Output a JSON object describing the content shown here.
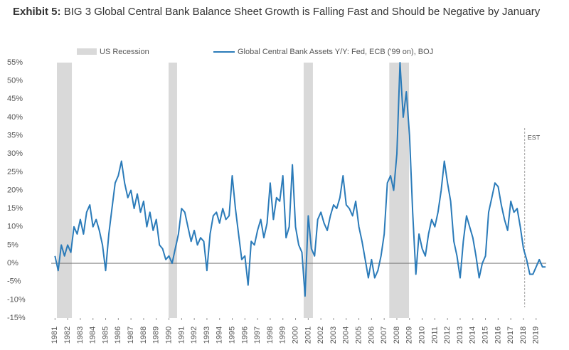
{
  "chart_data": {
    "type": "line",
    "title_label": "Exhibit 5:",
    "title": "BIG 3 Global Central Bank Balance Sheet Growth is Falling Fast and Should be Negative by January",
    "recession_name": "US Recession",
    "recession_color": "#d9d9d9",
    "recessions": [
      {
        "start": 1981.15,
        "end": 1982.33
      },
      {
        "start": 1989.97,
        "end": 1990.64
      },
      {
        "start": 2000.64,
        "end": 2001.37
      },
      {
        "start": 2007.4,
        "end": 2008.96
      }
    ],
    "est": {
      "label": "EST",
      "x": 2018.1
    },
    "x": [
      1981,
      1981.25,
      1981.5,
      1981.75,
      1982,
      1982.25,
      1982.5,
      1982.75,
      1983,
      1983.25,
      1983.5,
      1983.75,
      1984,
      1984.25,
      1984.5,
      1984.75,
      1985,
      1985.25,
      1985.5,
      1985.75,
      1986,
      1986.25,
      1986.5,
      1986.75,
      1987,
      1987.25,
      1987.5,
      1987.75,
      1988,
      1988.25,
      1988.5,
      1988.75,
      1989,
      1989.25,
      1989.5,
      1989.75,
      1990,
      1990.25,
      1990.5,
      1990.75,
      1991,
      1991.25,
      1991.5,
      1991.75,
      1992,
      1992.25,
      1992.5,
      1992.75,
      1993,
      1993.25,
      1993.5,
      1993.75,
      1994,
      1994.25,
      1994.5,
      1994.75,
      1995,
      1995.25,
      1995.5,
      1995.75,
      1996,
      1996.25,
      1996.5,
      1996.75,
      1997,
      1997.25,
      1997.5,
      1997.75,
      1998,
      1998.25,
      1998.5,
      1998.75,
      1999,
      1999.25,
      1999.5,
      1999.75,
      2000,
      2000.25,
      2000.5,
      2000.75,
      2001,
      2001.25,
      2001.5,
      2001.75,
      2002,
      2002.25,
      2002.5,
      2002.75,
      2003,
      2003.25,
      2003.5,
      2003.75,
      2004,
      2004.25,
      2004.5,
      2004.75,
      2005,
      2005.25,
      2005.5,
      2005.75,
      2006,
      2006.25,
      2006.5,
      2006.75,
      2007,
      2007.25,
      2007.5,
      2007.75,
      2008,
      2008.25,
      2008.5,
      2008.75,
      2009,
      2009.25,
      2009.5,
      2009.75,
      2010,
      2010.25,
      2010.5,
      2010.75,
      2011,
      2011.25,
      2011.5,
      2011.75,
      2012,
      2012.25,
      2012.5,
      2012.75,
      2013,
      2013.25,
      2013.5,
      2013.75,
      2014,
      2014.25,
      2014.5,
      2014.75,
      2015,
      2015.25,
      2015.5,
      2015.75,
      2016,
      2016.25,
      2016.5,
      2016.75,
      2017,
      2017.25,
      2017.5,
      2017.75,
      2018,
      2018.25,
      2018.5,
      2018.75,
      2019,
      2019.25,
      2019.5,
      2019.75
    ],
    "series": [
      {
        "name": "Global Central Bank Assets Y/Y: Fed, ECB ('99 on), BOJ",
        "color": "#2b7bb9",
        "values": [
          2,
          -2,
          5,
          2,
          5,
          3,
          10,
          8,
          12,
          8,
          14,
          16,
          10,
          12,
          9,
          5,
          -2,
          8,
          15,
          22,
          24,
          28,
          22,
          18,
          20,
          15,
          19,
          14,
          17,
          10,
          14,
          9,
          12,
          5,
          4,
          1,
          2,
          0,
          4,
          8,
          15,
          14,
          10,
          6,
          9,
          5,
          7,
          6,
          -2,
          8,
          13,
          14,
          11,
          15,
          12,
          13,
          24,
          15,
          8,
          1,
          2,
          -6,
          6,
          5,
          9,
          12,
          7,
          11,
          22,
          12,
          18,
          17,
          24,
          7,
          10,
          27,
          10,
          5,
          3,
          -9,
          13,
          4,
          2,
          12,
          14,
          11,
          9,
          13,
          16,
          15,
          18,
          24,
          16,
          15,
          13,
          17,
          10,
          6,
          1,
          -4,
          1,
          -4,
          -2,
          2,
          8,
          22,
          24,
          20,
          30,
          55,
          40,
          47,
          35,
          14,
          -3,
          8,
          4,
          2,
          8,
          12,
          10,
          14,
          20,
          28,
          22,
          17,
          6,
          2,
          -4,
          6,
          13,
          10,
          7,
          2,
          -4,
          0,
          2,
          14,
          18,
          22,
          21,
          16,
          12,
          9,
          17,
          14,
          15,
          10,
          4,
          1,
          -3,
          -3,
          -1,
          1,
          -1,
          -1
        ]
      }
    ],
    "xlim": [
      1980.7,
      2019.8
    ],
    "xticks": [
      1981,
      1982,
      1983,
      1984,
      1985,
      1986,
      1987,
      1988,
      1989,
      1990,
      1991,
      1992,
      1993,
      1994,
      1995,
      1996,
      1997,
      1998,
      1999,
      2000,
      2001,
      2002,
      2003,
      2004,
      2005,
      2006,
      2007,
      2008,
      2009,
      2010,
      2011,
      2012,
      2013,
      2014,
      2015,
      2016,
      2017,
      2018,
      2019
    ],
    "ylim": [
      -15,
      55
    ],
    "yticks": [
      {
        "value": 55,
        "label": "55%"
      },
      {
        "value": 50,
        "label": "50%"
      },
      {
        "value": 45,
        "label": "45%"
      },
      {
        "value": 40,
        "label": "40%"
      },
      {
        "value": 35,
        "label": "35%"
      },
      {
        "value": 30,
        "label": "30%"
      },
      {
        "value": 25,
        "label": "25%"
      },
      {
        "value": 20,
        "label": "20%"
      },
      {
        "value": 15,
        "label": "15%"
      },
      {
        "value": 10,
        "label": "10%"
      },
      {
        "value": 5,
        "label": "5%"
      },
      {
        "value": 0,
        "label": "0%"
      },
      {
        "value": -5,
        "label": "-5%"
      },
      {
        "value": -10,
        "label": "-10%"
      },
      {
        "value": -15,
        "label": "-15%"
      }
    ]
  }
}
